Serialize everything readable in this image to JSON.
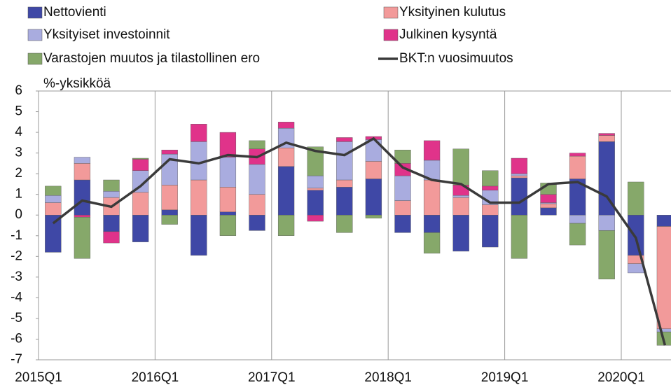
{
  "chart_data": {
    "type": "bar",
    "y_label": "%-yksikköä",
    "categories": [
      "2015Q1",
      null,
      null,
      null,
      "2016Q1",
      null,
      null,
      null,
      "2017Q1",
      null,
      null,
      null,
      "2018Q1",
      null,
      null,
      null,
      "2019Q1",
      null,
      null,
      null,
      "2020Q1",
      null
    ],
    "ylim": [
      -7,
      6
    ],
    "yticks": [
      -7,
      -6,
      -5,
      -4,
      -3,
      -2,
      -1,
      0,
      1,
      2,
      3,
      4,
      5,
      6
    ],
    "series": [
      {
        "name": "Nettovienti",
        "color": "#3f48a6",
        "values": [
          -1.8,
          1.7,
          -0.8,
          -1.3,
          0.25,
          -1.95,
          0.15,
          -0.75,
          2.35,
          1.2,
          1.35,
          1.75,
          -0.85,
          -0.85,
          -1.75,
          -1.55,
          1.8,
          0.35,
          1.75,
          3.55,
          -1.95,
          -0.55
        ]
      },
      {
        "name": "Yksityinen kulutus",
        "color": "#f29a9a",
        "values": [
          0.6,
          0.8,
          0.85,
          1.1,
          1.2,
          1.7,
          1.2,
          1.0,
          0.9,
          0.1,
          0.35,
          0.85,
          0.7,
          1.7,
          0.85,
          0.5,
          0.1,
          0.2,
          1.1,
          0.3,
          -0.4,
          -4.95
        ]
      },
      {
        "name": "Yksityiset investoinnit",
        "color": "#a9acdf",
        "values": [
          0.35,
          0.3,
          0.3,
          1.05,
          1.5,
          1.85,
          1.45,
          1.45,
          0.95,
          0.6,
          1.85,
          1.05,
          1.2,
          0.95,
          0.1,
          0.7,
          0.1,
          0.05,
          -0.4,
          -0.75,
          -0.45,
          -0.15
        ]
      },
      {
        "name": "Julkinen kysyntä",
        "color": "#e0338a",
        "values": [
          0,
          -0.1,
          -0.55,
          0.55,
          0.2,
          0.85,
          1.2,
          0.75,
          0.3,
          -0.3,
          0.2,
          0.15,
          0.6,
          0.95,
          0.5,
          0.2,
          0.75,
          0.4,
          0.15,
          0.1,
          0,
          0
        ]
      },
      {
        "name": "Varastojen muutos ja tilastollinen ero",
        "color": "#86a86a",
        "values": [
          0.45,
          -2.0,
          0.55,
          0.05,
          -0.45,
          0,
          -1.0,
          0.4,
          -1.0,
          1.4,
          -0.85,
          -0.15,
          0.65,
          -1.0,
          1.75,
          0.75,
          -2.1,
          0.55,
          -1.05,
          -2.35,
          1.6,
          -0.65
        ]
      },
      {
        "name": "BKT:n vuosimuutos",
        "color": "#3a3a3a",
        "type": "line",
        "values": [
          -0.4,
          0.7,
          0.4,
          1.4,
          2.7,
          2.5,
          2.9,
          2.8,
          3.5,
          3.1,
          2.9,
          3.7,
          2.3,
          1.7,
          1.5,
          0.6,
          0.6,
          1.5,
          1.6,
          0.9,
          -1.1,
          -6.3
        ]
      }
    ]
  }
}
